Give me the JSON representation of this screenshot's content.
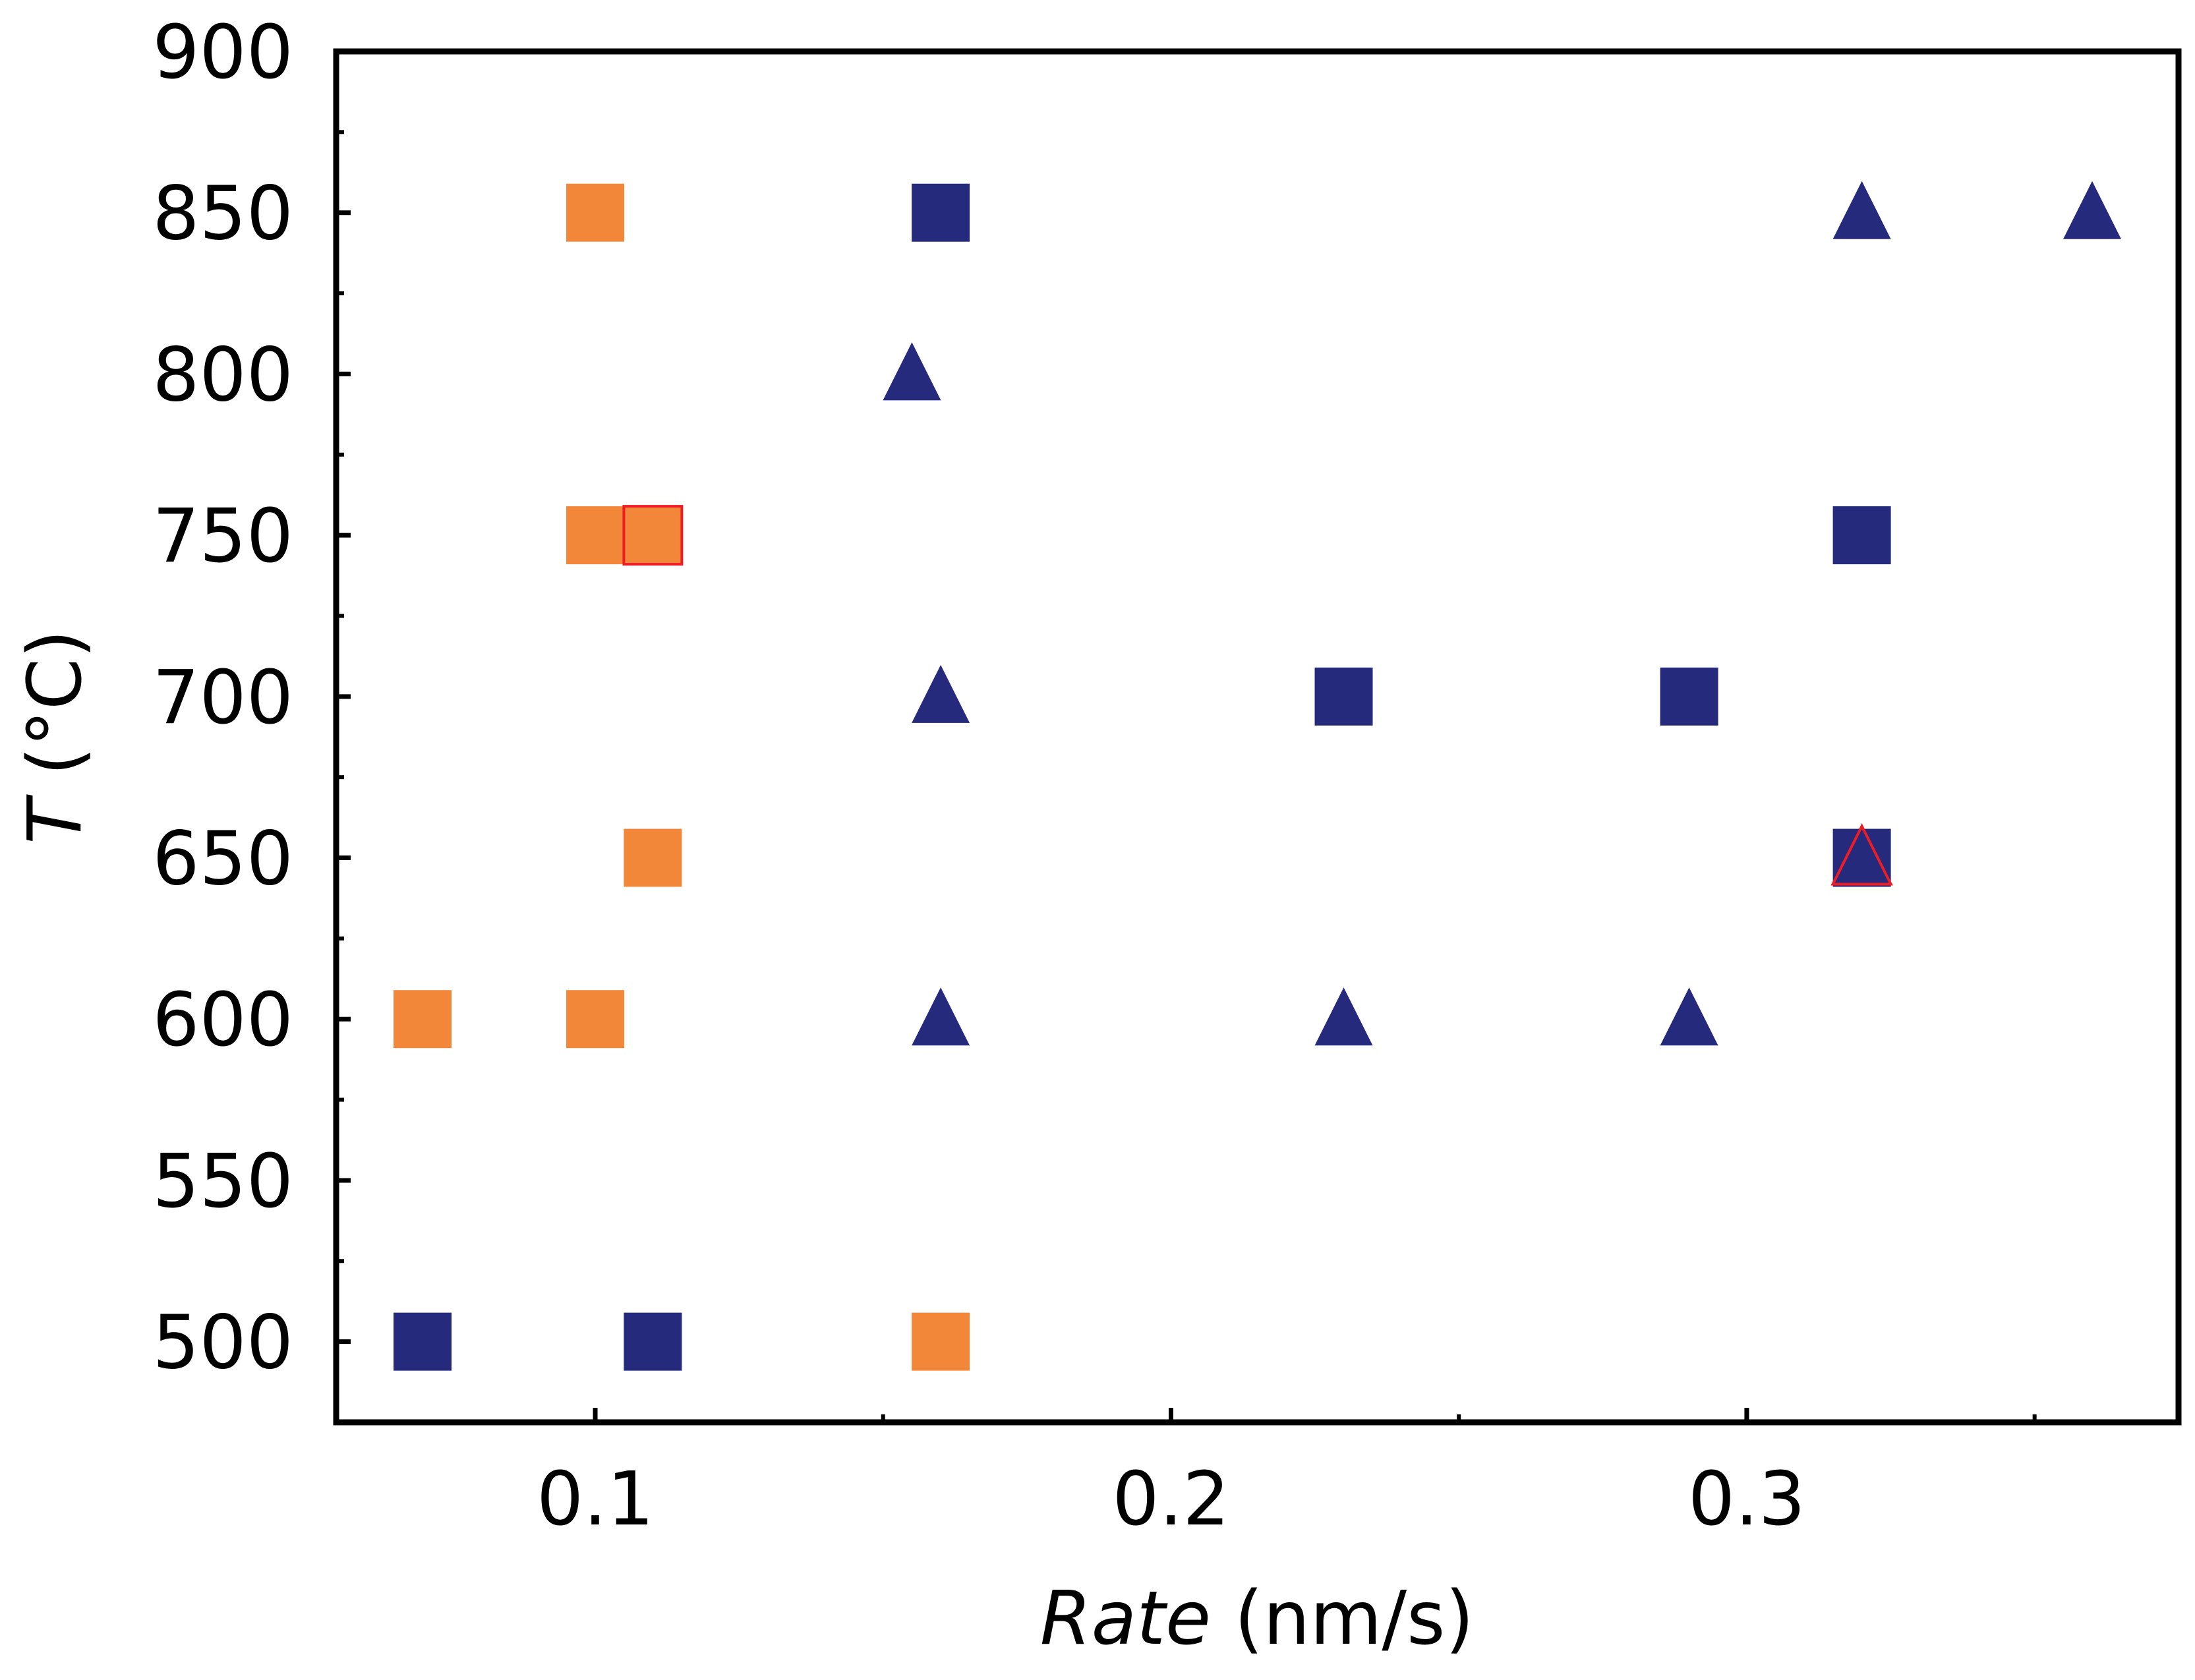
{
  "chart_data": {
    "type": "scatter",
    "title": "",
    "xlabel_italic": "Rate",
    "xlabel_rest": " (nm/s)",
    "ylabel_italic": "T",
    "ylabel_rest": " (°C)",
    "xlim": [
      0.055,
      0.375
    ],
    "ylim": [
      475,
      900
    ],
    "xticks_major": [
      0.1,
      0.2,
      0.3
    ],
    "xtick_labels": [
      "0.1",
      "0.2",
      "0.3"
    ],
    "xticks_minor": [
      0.15,
      0.25,
      0.35
    ],
    "yticks_major": [
      500,
      550,
      600,
      650,
      700,
      750,
      800,
      850,
      900
    ],
    "ytick_labels": [
      "500",
      "550",
      "600",
      "650",
      "700",
      "750",
      "800",
      "850",
      "900"
    ],
    "yticks_minor": [
      525,
      575,
      625,
      675,
      725,
      775,
      825,
      875
    ],
    "grid": false,
    "colors": {
      "orange": "#f2873a",
      "navy": "#262a7c",
      "highlight": "#ee1c24",
      "axis": "#000000"
    },
    "series": [
      {
        "name": "orange-squares",
        "marker": "square",
        "color": "#f2873a",
        "points": [
          {
            "x": 0.07,
            "y": 600
          },
          {
            "x": 0.1,
            "y": 600
          },
          {
            "x": 0.11,
            "y": 650
          },
          {
            "x": 0.1,
            "y": 750
          },
          {
            "x": 0.1,
            "y": 850
          },
          {
            "x": 0.16,
            "y": 500
          }
        ]
      },
      {
        "name": "navy-squares",
        "marker": "square",
        "color": "#262a7c",
        "points": [
          {
            "x": 0.07,
            "y": 500
          },
          {
            "x": 0.11,
            "y": 500
          },
          {
            "x": 0.16,
            "y": 850
          },
          {
            "x": 0.23,
            "y": 700
          },
          {
            "x": 0.29,
            "y": 700
          },
          {
            "x": 0.32,
            "y": 650
          },
          {
            "x": 0.32,
            "y": 750
          }
        ]
      },
      {
        "name": "navy-triangles",
        "marker": "triangle",
        "color": "#262a7c",
        "points": [
          {
            "x": 0.155,
            "y": 800
          },
          {
            "x": 0.16,
            "y": 700
          },
          {
            "x": 0.16,
            "y": 600
          },
          {
            "x": 0.23,
            "y": 600
          },
          {
            "x": 0.29,
            "y": 600
          },
          {
            "x": 0.32,
            "y": 850
          },
          {
            "x": 0.36,
            "y": 850
          }
        ]
      },
      {
        "name": "highlighted-orange-square",
        "marker": "square",
        "color": "#f2873a",
        "edgecolor": "#ee1c24",
        "points": [
          {
            "x": 0.11,
            "y": 750
          }
        ]
      },
      {
        "name": "highlighted-open-triangle",
        "marker": "triangle-open",
        "color": "none",
        "edgecolor": "#ee1c24",
        "points": [
          {
            "x": 0.32,
            "y": 650
          }
        ]
      }
    ]
  }
}
